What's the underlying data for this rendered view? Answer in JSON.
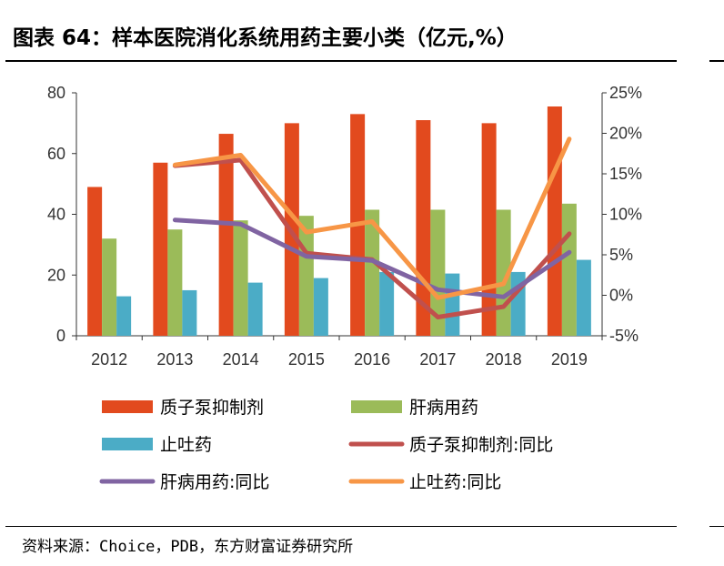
{
  "title": "图表 64：样本医院消化系统用药主要小类（亿元,%）",
  "source": "资料来源：Choice，PDB，东方财富证券研究所",
  "colors": {
    "ppi": "#E24A1E",
    "liver": "#9BBB59",
    "antiemetic": "#4BACC6",
    "ppi_yoy": "#C0504D",
    "liver_yoy": "#8064A2",
    "antiemetic_yoy": "#F79646"
  },
  "chart_data": {
    "type": "bar",
    "categories": [
      "2012",
      "2013",
      "2014",
      "2015",
      "2016",
      "2017",
      "2018",
      "2019"
    ],
    "y_left": {
      "min": 0,
      "max": 80,
      "ticks": [
        "0",
        "20",
        "40",
        "60",
        "80"
      ]
    },
    "y_right": {
      "min": -5,
      "max": 25,
      "ticks": [
        "-5%",
        "0%",
        "5%",
        "10%",
        "15%",
        "20%",
        "25%"
      ]
    },
    "bars": [
      {
        "name": "质子泵抑制剂",
        "values": [
          49,
          57,
          66.5,
          70,
          73,
          71,
          70,
          75.5
        ]
      },
      {
        "name": "肝病用药",
        "values": [
          32,
          35,
          38,
          39.5,
          41.5,
          41.5,
          41.5,
          43.5
        ]
      },
      {
        "name": "止吐药",
        "values": [
          13,
          15,
          17.5,
          19,
          21,
          20.5,
          21,
          25
        ]
      }
    ],
    "lines": [
      {
        "name": "质子泵抑制剂:同比",
        "values": [
          null,
          16,
          16.7,
          5.2,
          4.4,
          -2.7,
          -1.4,
          7.6
        ]
      },
      {
        "name": "肝病用药:同比",
        "values": [
          null,
          9.3,
          8.8,
          4.8,
          4.3,
          0.7,
          -0.2,
          5.3
        ]
      },
      {
        "name": "止吐药:同比",
        "values": [
          null,
          16.1,
          17.3,
          7.8,
          9.1,
          -0.3,
          1.4,
          19.3
        ]
      }
    ],
    "legend_position": "bottom"
  }
}
